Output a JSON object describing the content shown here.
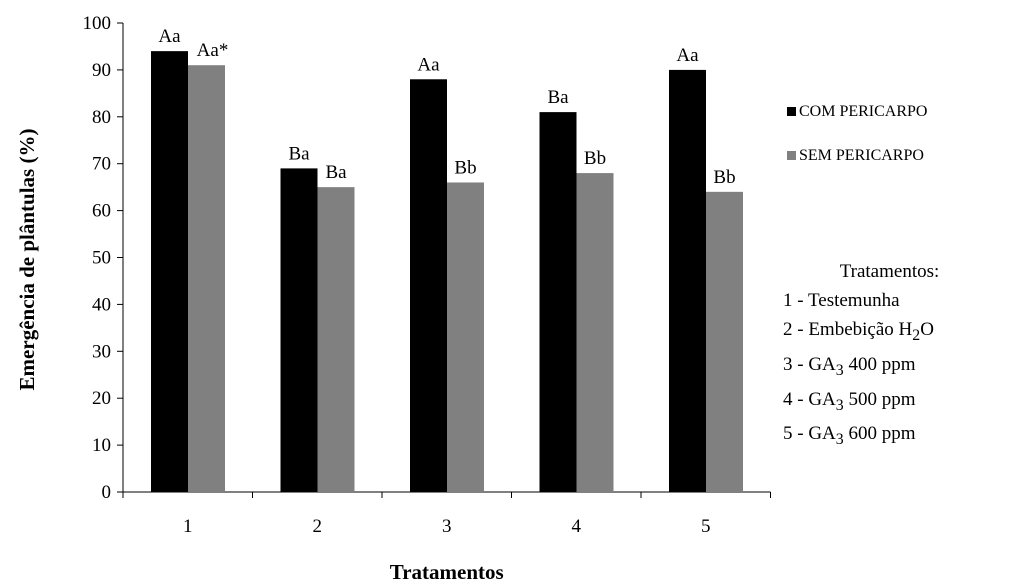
{
  "colors": {
    "com": "#000000",
    "sem": "#808080",
    "axis": "#000000"
  },
  "chart_data": {
    "type": "bar",
    "xlabel": "Tratamentos",
    "ylabel": "Emergência de plântulas (%)",
    "ylim": [
      0,
      100
    ],
    "yticks": [
      "0",
      "10",
      "20",
      "30",
      "40",
      "50",
      "60",
      "70",
      "80",
      "90",
      "100"
    ],
    "categories": [
      "1",
      "2",
      "3",
      "4",
      "5"
    ],
    "legend_position": "right",
    "series": [
      {
        "name": "COM PERICARPO",
        "values": [
          94,
          69,
          88,
          81,
          90
        ],
        "labels": [
          "Aa",
          "Ba",
          "Aa",
          "Ba",
          "Aa"
        ]
      },
      {
        "name": "SEM PERICARPO",
        "values": [
          91,
          65,
          66,
          68,
          64
        ],
        "labels": [
          "Aa*",
          "Ba",
          "Bb",
          "Bb",
          "Bb"
        ]
      }
    ]
  },
  "treatments": {
    "title": "Tratamentos:",
    "items": [
      {
        "prefix": "1 - Testemunha",
        "sub": "",
        "suffix": ""
      },
      {
        "prefix": "2 -  Embebição H",
        "sub": "2",
        "suffix": "O"
      },
      {
        "prefix": "3 - GA",
        "sub": "3",
        "suffix": " 400 ppm"
      },
      {
        "prefix": "4 - GA",
        "sub": "3",
        "suffix": "  500 ppm"
      },
      {
        "prefix": "5 - GA",
        "sub": "3",
        "suffix": " 600 ppm"
      }
    ]
  }
}
